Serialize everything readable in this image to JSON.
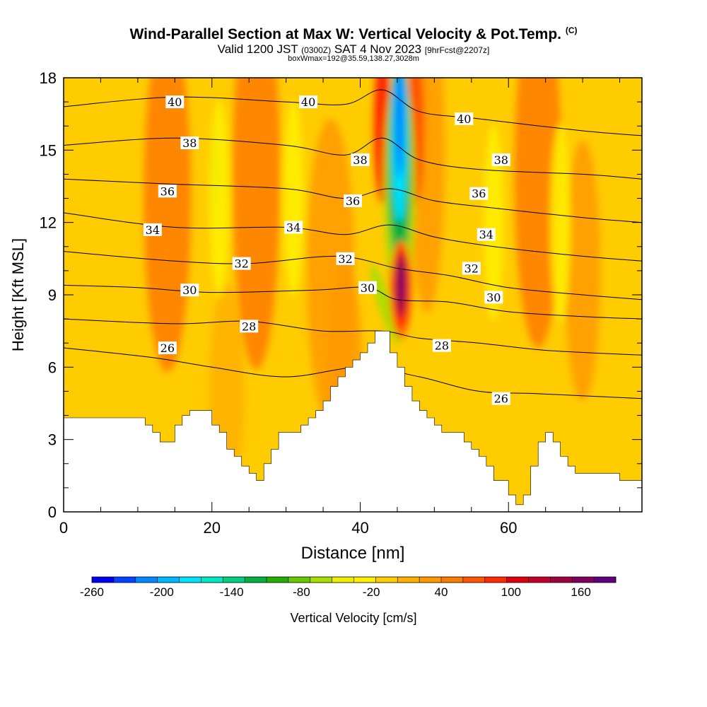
{
  "title": {
    "main": "Wind-Parallel Section at Max W: Vertical Velocity & Pot.Temp.",
    "copyright": "(C)",
    "valid_prefix": "Valid 1200 JST",
    "valid_utc": "(0300Z)",
    "valid_date": "SAT 4 Nov 2023",
    "forecast": "[9hrFcst@2207z]",
    "boxwmax": "boxWmax=192@35.59,138.27,3028m"
  },
  "chart_data": {
    "type": "heatmap",
    "xlabel": "Distance [nm]",
    "ylabel": "Height [Kft MSL]",
    "xlim": [
      0,
      78
    ],
    "ylim": [
      0,
      18
    ],
    "x_ticks": [
      0,
      20,
      40,
      60
    ],
    "y_ticks": [
      0,
      3,
      6,
      9,
      12,
      15,
      18
    ],
    "colorbar": {
      "label": "Vertical Velocity [cm/s]",
      "tick_labels": [
        "-260",
        "-200",
        "-140",
        "-80",
        "-20",
        "40",
        "100",
        "160"
      ],
      "tick_values": [
        -260,
        -200,
        -140,
        -80,
        -20,
        40,
        100,
        160
      ],
      "range": [
        -260,
        190
      ],
      "step": 20,
      "colors": [
        "#0000ee",
        "#0044ff",
        "#0088ff",
        "#00b8ff",
        "#00e0ff",
        "#00e8c0",
        "#00d080",
        "#00b040",
        "#22b000",
        "#66c800",
        "#aadd00",
        "#eeee00",
        "#ffee00",
        "#ffcc00",
        "#ffb000",
        "#ff9900",
        "#ff7a00",
        "#ff5500",
        "#ff2a00",
        "#e00010",
        "#c0002a",
        "#a00040",
        "#800060",
        "#600080"
      ]
    },
    "terrain_kft": [
      [
        0,
        3.9
      ],
      [
        10,
        3.9
      ],
      [
        11,
        3.6
      ],
      [
        12,
        3.3
      ],
      [
        13,
        2.9
      ],
      [
        14,
        2.9
      ],
      [
        15,
        3.6
      ],
      [
        16,
        4.0
      ],
      [
        17,
        4.2
      ],
      [
        19,
        4.2
      ],
      [
        20,
        3.6
      ],
      [
        21,
        3.3
      ],
      [
        22,
        2.6
      ],
      [
        23,
        2.3
      ],
      [
        24,
        1.9
      ],
      [
        25,
        1.6
      ],
      [
        26,
        1.3
      ],
      [
        27,
        2.0
      ],
      [
        28,
        2.6
      ],
      [
        29,
        3.3
      ],
      [
        31,
        3.3
      ],
      [
        32,
        3.6
      ],
      [
        33,
        3.9
      ],
      [
        34,
        4.2
      ],
      [
        35,
        4.6
      ],
      [
        36,
        5.2
      ],
      [
        37,
        5.6
      ],
      [
        38,
        6.0
      ],
      [
        39,
        6.3
      ],
      [
        40,
        6.6
      ],
      [
        41,
        7.0
      ],
      [
        42,
        7.5
      ],
      [
        43,
        7.5
      ],
      [
        44,
        6.6
      ],
      [
        45,
        6.0
      ],
      [
        46,
        5.2
      ],
      [
        47,
        4.6
      ],
      [
        48,
        4.2
      ],
      [
        49,
        3.9
      ],
      [
        50,
        3.6
      ],
      [
        51,
        3.3
      ],
      [
        53,
        3.3
      ],
      [
        54,
        2.9
      ],
      [
        55,
        2.6
      ],
      [
        56,
        2.3
      ],
      [
        57,
        1.9
      ],
      [
        58,
        1.3
      ],
      [
        60,
        0.7
      ],
      [
        61,
        0.3
      ],
      [
        62,
        0.7
      ],
      [
        63,
        1.9
      ],
      [
        64,
        2.9
      ],
      [
        65,
        3.3
      ],
      [
        66,
        2.9
      ],
      [
        67,
        2.3
      ],
      [
        68,
        1.9
      ],
      [
        69,
        1.6
      ],
      [
        74,
        1.6
      ],
      [
        75,
        1.3
      ],
      [
        78,
        1.3
      ]
    ],
    "isentropes": [
      {
        "theta": 40,
        "points": [
          [
            0,
            16.8
          ],
          [
            15,
            17.2
          ],
          [
            30,
            17.0
          ],
          [
            38,
            16.9
          ],
          [
            43,
            17.5
          ],
          [
            48,
            16.6
          ],
          [
            56,
            16.3
          ],
          [
            70,
            15.8
          ],
          [
            78,
            15.6
          ]
        ]
      },
      {
        "theta": 38,
        "points": [
          [
            0,
            15.2
          ],
          [
            15,
            15.5
          ],
          [
            30,
            15.2
          ],
          [
            38,
            14.8
          ],
          [
            43,
            15.5
          ],
          [
            48,
            14.6
          ],
          [
            56,
            14.2
          ],
          [
            70,
            14.0
          ],
          [
            78,
            13.8
          ]
        ]
      },
      {
        "theta": 36,
        "points": [
          [
            0,
            13.8
          ],
          [
            14,
            13.6
          ],
          [
            30,
            13.4
          ],
          [
            38,
            13.0
          ],
          [
            44,
            13.4
          ],
          [
            50,
            12.9
          ],
          [
            58,
            12.6
          ],
          [
            70,
            12.2
          ],
          [
            78,
            12.0
          ]
        ]
      },
      {
        "theta": 34,
        "points": [
          [
            0,
            12.4
          ],
          [
            15,
            11.8
          ],
          [
            30,
            11.8
          ],
          [
            38,
            11.5
          ],
          [
            44,
            11.9
          ],
          [
            50,
            11.4
          ],
          [
            58,
            11.0
          ],
          [
            70,
            10.6
          ],
          [
            78,
            10.4
          ]
        ]
      },
      {
        "theta": 32,
        "points": [
          [
            0,
            10.8
          ],
          [
            15,
            10.4
          ],
          [
            25,
            10.3
          ],
          [
            37,
            10.6
          ],
          [
            45,
            10.1
          ],
          [
            52,
            9.8
          ],
          [
            60,
            9.3
          ],
          [
            70,
            9.0
          ],
          [
            78,
            8.8
          ]
        ]
      },
      {
        "theta": 30,
        "points": [
          [
            0,
            9.4
          ],
          [
            10,
            9.3
          ],
          [
            20,
            9.1
          ],
          [
            34,
            9.2
          ],
          [
            41,
            9.3
          ],
          [
            45,
            8.8
          ],
          [
            52,
            8.7
          ],
          [
            60,
            8.3
          ],
          [
            70,
            8.1
          ],
          [
            78,
            8.0
          ]
        ]
      },
      {
        "theta": 28,
        "points": [
          [
            0,
            8.0
          ],
          [
            15,
            7.8
          ],
          [
            25,
            7.9
          ],
          [
            35,
            7.5
          ],
          [
            43,
            7.5
          ],
          [
            48,
            7.2
          ],
          [
            56,
            7.0
          ],
          [
            65,
            6.7
          ],
          [
            78,
            6.5
          ]
        ]
      },
      {
        "theta": 26,
        "points": [
          [
            0,
            6.8
          ],
          [
            12,
            6.4
          ],
          [
            20,
            6.0
          ],
          [
            30,
            5.6
          ],
          [
            40,
            6.0
          ],
          [
            48,
            5.6
          ],
          [
            56,
            5.0
          ],
          [
            64,
            4.9
          ],
          [
            78,
            4.7
          ]
        ]
      }
    ],
    "contour_labels": [
      {
        "text": "40",
        "x": 15,
        "y": 17.0
      },
      {
        "text": "40",
        "x": 33,
        "y": 17.0
      },
      {
        "text": "40",
        "x": 54,
        "y": 16.3
      },
      {
        "text": "38",
        "x": 17,
        "y": 15.3
      },
      {
        "text": "38",
        "x": 40,
        "y": 14.6
      },
      {
        "text": "38",
        "x": 59,
        "y": 14.6
      },
      {
        "text": "36",
        "x": 14,
        "y": 13.3
      },
      {
        "text": "36",
        "x": 39,
        "y": 12.9
      },
      {
        "text": "36",
        "x": 56,
        "y": 13.2
      },
      {
        "text": "34",
        "x": 12,
        "y": 11.7
      },
      {
        "text": "34",
        "x": 31,
        "y": 11.8
      },
      {
        "text": "34",
        "x": 57,
        "y": 11.5
      },
      {
        "text": "32",
        "x": 24,
        "y": 10.3
      },
      {
        "text": "32",
        "x": 38,
        "y": 10.5
      },
      {
        "text": "32",
        "x": 55,
        "y": 10.1
      },
      {
        "text": "30",
        "x": 17,
        "y": 9.2
      },
      {
        "text": "30",
        "x": 41,
        "y": 9.3
      },
      {
        "text": "30",
        "x": 58,
        "y": 8.9
      },
      {
        "text": "28",
        "x": 25,
        "y": 7.7
      },
      {
        "text": "28",
        "x": 51,
        "y": 6.9
      },
      {
        "text": "26",
        "x": 14,
        "y": 6.8
      },
      {
        "text": "26",
        "x": 59,
        "y": 4.7
      }
    ],
    "velocity_features": [
      {
        "kind": "downdraft",
        "x": 45.2,
        "y": 16.5,
        "wmin": -230
      },
      {
        "kind": "updraft",
        "x": 45.3,
        "y": 9.5,
        "wmax": 192
      },
      {
        "kind": "updraft",
        "x": 47.5,
        "y": 16.0,
        "wmax": 100
      },
      {
        "kind": "updraft",
        "x": 43.0,
        "y": 16.0,
        "wmax": 100
      },
      {
        "kind": "downdraft",
        "x": 20.5,
        "y": 14.0,
        "wmin": -40
      }
    ]
  }
}
